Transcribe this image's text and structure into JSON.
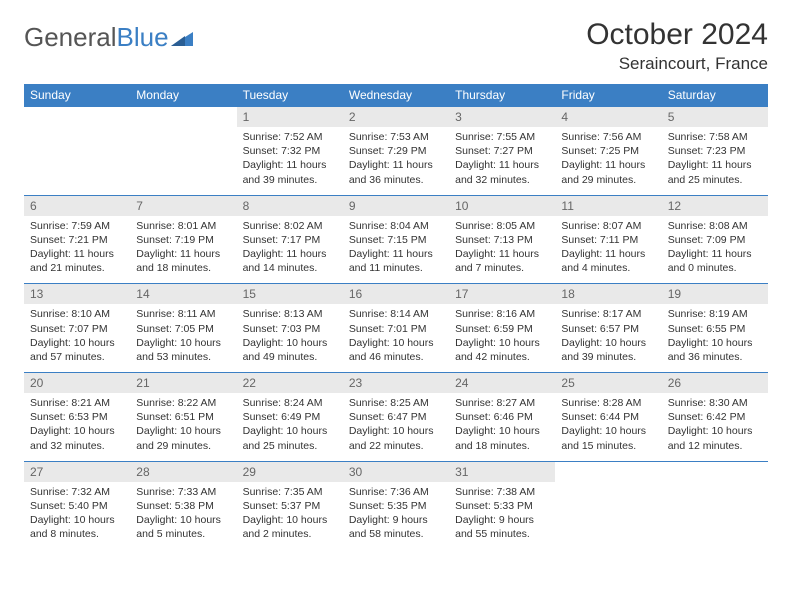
{
  "brand": {
    "part1": "General",
    "part2": "Blue"
  },
  "title": "October 2024",
  "location": "Seraincourt, France",
  "colors": {
    "header_bg": "#3b7fc4",
    "header_text": "#ffffff",
    "daynum_bg": "#e9e9e9",
    "row_border": "#3b7fc4",
    "body_text": "#333333"
  },
  "weekdays": [
    "Sunday",
    "Monday",
    "Tuesday",
    "Wednesday",
    "Thursday",
    "Friday",
    "Saturday"
  ],
  "weeks": [
    [
      {
        "num": "",
        "sunrise": "",
        "sunset": "",
        "daylight": ""
      },
      {
        "num": "",
        "sunrise": "",
        "sunset": "",
        "daylight": ""
      },
      {
        "num": "1",
        "sunrise": "Sunrise: 7:52 AM",
        "sunset": "Sunset: 7:32 PM",
        "daylight": "Daylight: 11 hours and 39 minutes."
      },
      {
        "num": "2",
        "sunrise": "Sunrise: 7:53 AM",
        "sunset": "Sunset: 7:29 PM",
        "daylight": "Daylight: 11 hours and 36 minutes."
      },
      {
        "num": "3",
        "sunrise": "Sunrise: 7:55 AM",
        "sunset": "Sunset: 7:27 PM",
        "daylight": "Daylight: 11 hours and 32 minutes."
      },
      {
        "num": "4",
        "sunrise": "Sunrise: 7:56 AM",
        "sunset": "Sunset: 7:25 PM",
        "daylight": "Daylight: 11 hours and 29 minutes."
      },
      {
        "num": "5",
        "sunrise": "Sunrise: 7:58 AM",
        "sunset": "Sunset: 7:23 PM",
        "daylight": "Daylight: 11 hours and 25 minutes."
      }
    ],
    [
      {
        "num": "6",
        "sunrise": "Sunrise: 7:59 AM",
        "sunset": "Sunset: 7:21 PM",
        "daylight": "Daylight: 11 hours and 21 minutes."
      },
      {
        "num": "7",
        "sunrise": "Sunrise: 8:01 AM",
        "sunset": "Sunset: 7:19 PM",
        "daylight": "Daylight: 11 hours and 18 minutes."
      },
      {
        "num": "8",
        "sunrise": "Sunrise: 8:02 AM",
        "sunset": "Sunset: 7:17 PM",
        "daylight": "Daylight: 11 hours and 14 minutes."
      },
      {
        "num": "9",
        "sunrise": "Sunrise: 8:04 AM",
        "sunset": "Sunset: 7:15 PM",
        "daylight": "Daylight: 11 hours and 11 minutes."
      },
      {
        "num": "10",
        "sunrise": "Sunrise: 8:05 AM",
        "sunset": "Sunset: 7:13 PM",
        "daylight": "Daylight: 11 hours and 7 minutes."
      },
      {
        "num": "11",
        "sunrise": "Sunrise: 8:07 AM",
        "sunset": "Sunset: 7:11 PM",
        "daylight": "Daylight: 11 hours and 4 minutes."
      },
      {
        "num": "12",
        "sunrise": "Sunrise: 8:08 AM",
        "sunset": "Sunset: 7:09 PM",
        "daylight": "Daylight: 11 hours and 0 minutes."
      }
    ],
    [
      {
        "num": "13",
        "sunrise": "Sunrise: 8:10 AM",
        "sunset": "Sunset: 7:07 PM",
        "daylight": "Daylight: 10 hours and 57 minutes."
      },
      {
        "num": "14",
        "sunrise": "Sunrise: 8:11 AM",
        "sunset": "Sunset: 7:05 PM",
        "daylight": "Daylight: 10 hours and 53 minutes."
      },
      {
        "num": "15",
        "sunrise": "Sunrise: 8:13 AM",
        "sunset": "Sunset: 7:03 PM",
        "daylight": "Daylight: 10 hours and 49 minutes."
      },
      {
        "num": "16",
        "sunrise": "Sunrise: 8:14 AM",
        "sunset": "Sunset: 7:01 PM",
        "daylight": "Daylight: 10 hours and 46 minutes."
      },
      {
        "num": "17",
        "sunrise": "Sunrise: 8:16 AM",
        "sunset": "Sunset: 6:59 PM",
        "daylight": "Daylight: 10 hours and 42 minutes."
      },
      {
        "num": "18",
        "sunrise": "Sunrise: 8:17 AM",
        "sunset": "Sunset: 6:57 PM",
        "daylight": "Daylight: 10 hours and 39 minutes."
      },
      {
        "num": "19",
        "sunrise": "Sunrise: 8:19 AM",
        "sunset": "Sunset: 6:55 PM",
        "daylight": "Daylight: 10 hours and 36 minutes."
      }
    ],
    [
      {
        "num": "20",
        "sunrise": "Sunrise: 8:21 AM",
        "sunset": "Sunset: 6:53 PM",
        "daylight": "Daylight: 10 hours and 32 minutes."
      },
      {
        "num": "21",
        "sunrise": "Sunrise: 8:22 AM",
        "sunset": "Sunset: 6:51 PM",
        "daylight": "Daylight: 10 hours and 29 minutes."
      },
      {
        "num": "22",
        "sunrise": "Sunrise: 8:24 AM",
        "sunset": "Sunset: 6:49 PM",
        "daylight": "Daylight: 10 hours and 25 minutes."
      },
      {
        "num": "23",
        "sunrise": "Sunrise: 8:25 AM",
        "sunset": "Sunset: 6:47 PM",
        "daylight": "Daylight: 10 hours and 22 minutes."
      },
      {
        "num": "24",
        "sunrise": "Sunrise: 8:27 AM",
        "sunset": "Sunset: 6:46 PM",
        "daylight": "Daylight: 10 hours and 18 minutes."
      },
      {
        "num": "25",
        "sunrise": "Sunrise: 8:28 AM",
        "sunset": "Sunset: 6:44 PM",
        "daylight": "Daylight: 10 hours and 15 minutes."
      },
      {
        "num": "26",
        "sunrise": "Sunrise: 8:30 AM",
        "sunset": "Sunset: 6:42 PM",
        "daylight": "Daylight: 10 hours and 12 minutes."
      }
    ],
    [
      {
        "num": "27",
        "sunrise": "Sunrise: 7:32 AM",
        "sunset": "Sunset: 5:40 PM",
        "daylight": "Daylight: 10 hours and 8 minutes."
      },
      {
        "num": "28",
        "sunrise": "Sunrise: 7:33 AM",
        "sunset": "Sunset: 5:38 PM",
        "daylight": "Daylight: 10 hours and 5 minutes."
      },
      {
        "num": "29",
        "sunrise": "Sunrise: 7:35 AM",
        "sunset": "Sunset: 5:37 PM",
        "daylight": "Daylight: 10 hours and 2 minutes."
      },
      {
        "num": "30",
        "sunrise": "Sunrise: 7:36 AM",
        "sunset": "Sunset: 5:35 PM",
        "daylight": "Daylight: 9 hours and 58 minutes."
      },
      {
        "num": "31",
        "sunrise": "Sunrise: 7:38 AM",
        "sunset": "Sunset: 5:33 PM",
        "daylight": "Daylight: 9 hours and 55 minutes."
      },
      {
        "num": "",
        "sunrise": "",
        "sunset": "",
        "daylight": ""
      },
      {
        "num": "",
        "sunrise": "",
        "sunset": "",
        "daylight": ""
      }
    ]
  ]
}
